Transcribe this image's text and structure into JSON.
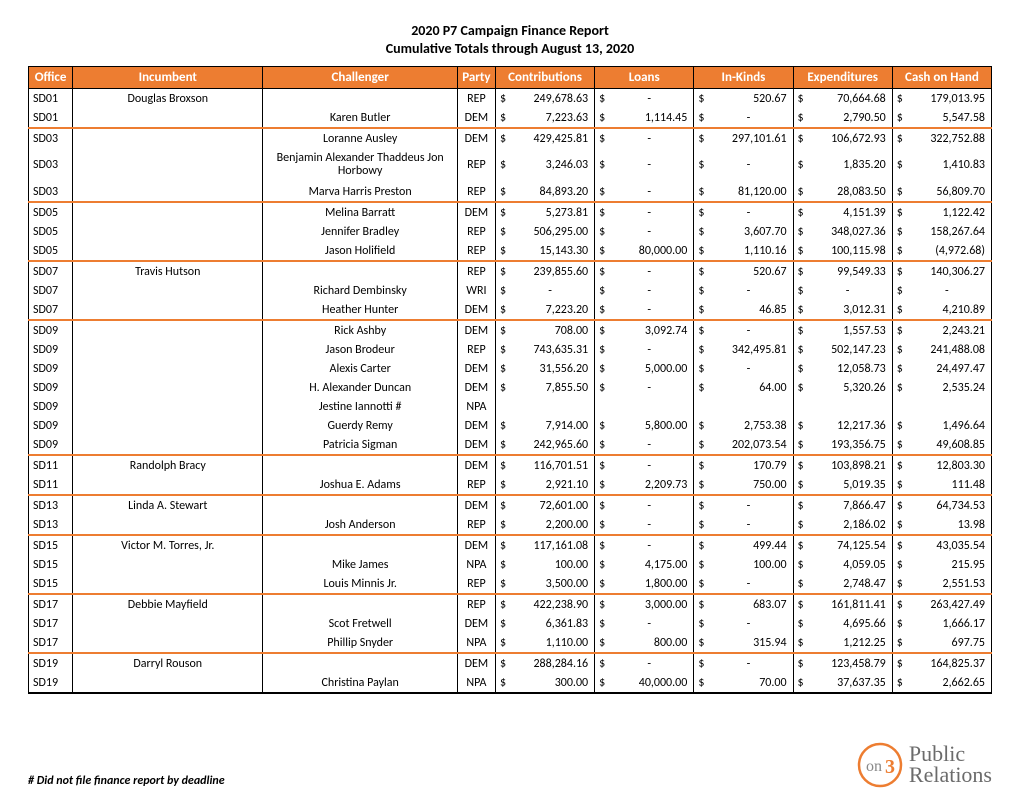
{
  "title_line1": "2020 P7 Campaign Finance Report",
  "title_line2": "Cumulative Totals through August 13, 2020",
  "footnote": "# Did not file finance report by deadline",
  "logo": {
    "on": "on",
    "three": "3",
    "name1": "Public",
    "name2": "Relations"
  },
  "headers": {
    "office": "Office",
    "incumbent": "Incumbent",
    "challenger": "Challenger",
    "party": "Party",
    "contributions": "Contributions",
    "loans": "Loans",
    "inkinds": "In-Kinds",
    "expenditures": "Expenditures",
    "cash": "Cash on Hand"
  },
  "colors": {
    "header_bg": "#ed7d31",
    "header_fg": "#ffffff",
    "group_border": "#ed7d31"
  },
  "rows": [
    {
      "office": "SD01",
      "incumbent": "Douglas Broxson",
      "challenger": "",
      "party": "REP",
      "contrib": "249,678.63",
      "loans": "-",
      "inkinds": "520.67",
      "expend": "70,664.68",
      "cash": "179,013.95",
      "end": false
    },
    {
      "office": "SD01",
      "incumbent": "",
      "challenger": "Karen Butler",
      "party": "DEM",
      "contrib": "7,223.63",
      "loans": "1,114.45",
      "inkinds": "-",
      "expend": "2,790.50",
      "cash": "5,547.58",
      "end": true
    },
    {
      "office": "SD03",
      "incumbent": "",
      "challenger": "Loranne Ausley",
      "party": "DEM",
      "contrib": "429,425.81",
      "loans": "-",
      "inkinds": "297,101.61",
      "expend": "106,672.93",
      "cash": "322,752.88",
      "end": false
    },
    {
      "office": "SD03",
      "incumbent": "",
      "challenger": "Benjamin Alexander Thaddeus Jon Horbowy",
      "party": "REP",
      "contrib": "3,246.03",
      "loans": "-",
      "inkinds": "-",
      "expend": "1,835.20",
      "cash": "1,410.83",
      "end": false,
      "tall": true
    },
    {
      "office": "SD03",
      "incumbent": "",
      "challenger": "Marva Harris Preston",
      "party": "REP",
      "contrib": "84,893.20",
      "loans": "-",
      "inkinds": "81,120.00",
      "expend": "28,083.50",
      "cash": "56,809.70",
      "end": true
    },
    {
      "office": "SD05",
      "incumbent": "",
      "challenger": "Melina Barratt",
      "party": "DEM",
      "contrib": "5,273.81",
      "loans": "-",
      "inkinds": "-",
      "expend": "4,151.39",
      "cash": "1,122.42",
      "end": false
    },
    {
      "office": "SD05",
      "incumbent": "",
      "challenger": "Jennifer Bradley",
      "party": "REP",
      "contrib": "506,295.00",
      "loans": "-",
      "inkinds": "3,607.70",
      "expend": "348,027.36",
      "cash": "158,267.64",
      "end": false
    },
    {
      "office": "SD05",
      "incumbent": "",
      "challenger": "Jason Holifield",
      "party": "REP",
      "contrib": "15,143.30",
      "loans": "80,000.00",
      "inkinds": "1,110.16",
      "expend": "100,115.98",
      "cash": "(4,972.68)",
      "end": true
    },
    {
      "office": "SD07",
      "incumbent": "Travis Hutson",
      "challenger": "",
      "party": "REP",
      "contrib": "239,855.60",
      "loans": "-",
      "inkinds": "520.67",
      "expend": "99,549.33",
      "cash": "140,306.27",
      "end": false
    },
    {
      "office": "SD07",
      "incumbent": "",
      "challenger": "Richard Dembinsky",
      "party": "WRI",
      "contrib": "-",
      "loans": "-",
      "inkinds": "-",
      "expend": "-",
      "cash": "-",
      "end": false
    },
    {
      "office": "SD07",
      "incumbent": "",
      "challenger": "Heather Hunter",
      "party": "DEM",
      "contrib": "7,223.20",
      "loans": "-",
      "inkinds": "46.85",
      "expend": "3,012.31",
      "cash": "4,210.89",
      "end": true
    },
    {
      "office": "SD09",
      "incumbent": "",
      "challenger": "Rick Ashby",
      "party": "DEM",
      "contrib": "708.00",
      "loans": "3,092.74",
      "inkinds": "-",
      "expend": "1,557.53",
      "cash": "2,243.21",
      "end": false
    },
    {
      "office": "SD09",
      "incumbent": "",
      "challenger": "Jason Brodeur",
      "party": "REP",
      "contrib": "743,635.31",
      "loans": "-",
      "inkinds": "342,495.81",
      "expend": "502,147.23",
      "cash": "241,488.08",
      "end": false
    },
    {
      "office": "SD09",
      "incumbent": "",
      "challenger": "Alexis Carter",
      "party": "DEM",
      "contrib": "31,556.20",
      "loans": "5,000.00",
      "inkinds": "-",
      "expend": "12,058.73",
      "cash": "24,497.47",
      "end": false
    },
    {
      "office": "SD09",
      "incumbent": "",
      "challenger": "H. Alexander Duncan",
      "party": "DEM",
      "contrib": "7,855.50",
      "loans": "-",
      "inkinds": "64.00",
      "expend": "5,320.26",
      "cash": "2,535.24",
      "end": false
    },
    {
      "office": "SD09",
      "incumbent": "",
      "challenger": "Jestine Iannotti #",
      "party": "NPA",
      "contrib": "",
      "loans": "",
      "inkinds": "",
      "expend": "",
      "cash": "",
      "end": false
    },
    {
      "office": "SD09",
      "incumbent": "",
      "challenger": "Guerdy Remy",
      "party": "DEM",
      "contrib": "7,914.00",
      "loans": "5,800.00",
      "inkinds": "2,753.38",
      "expend": "12,217.36",
      "cash": "1,496.64",
      "end": false
    },
    {
      "office": "SD09",
      "incumbent": "",
      "challenger": "Patricia Sigman",
      "party": "DEM",
      "contrib": "242,965.60",
      "loans": "-",
      "inkinds": "202,073.54",
      "expend": "193,356.75",
      "cash": "49,608.85",
      "end": true
    },
    {
      "office": "SD11",
      "incumbent": "Randolph Bracy",
      "challenger": "",
      "party": "DEM",
      "contrib": "116,701.51",
      "loans": "-",
      "inkinds": "170.79",
      "expend": "103,898.21",
      "cash": "12,803.30",
      "end": false
    },
    {
      "office": "SD11",
      "incumbent": "",
      "challenger": "Joshua E. Adams",
      "party": "REP",
      "contrib": "2,921.10",
      "loans": "2,209.73",
      "inkinds": "750.00",
      "expend": "5,019.35",
      "cash": "111.48",
      "end": true
    },
    {
      "office": "SD13",
      "incumbent": "Linda A. Stewart",
      "challenger": "",
      "party": "DEM",
      "contrib": "72,601.00",
      "loans": "-",
      "inkinds": "-",
      "expend": "7,866.47",
      "cash": "64,734.53",
      "end": false
    },
    {
      "office": "SD13",
      "incumbent": "",
      "challenger": "Josh Anderson",
      "party": "REP",
      "contrib": "2,200.00",
      "loans": "-",
      "inkinds": "-",
      "expend": "2,186.02",
      "cash": "13.98",
      "end": true
    },
    {
      "office": "SD15",
      "incumbent": "Victor M. Torres, Jr.",
      "challenger": "",
      "party": "DEM",
      "contrib": "117,161.08",
      "loans": "-",
      "inkinds": "499.44",
      "expend": "74,125.54",
      "cash": "43,035.54",
      "end": false
    },
    {
      "office": "SD15",
      "incumbent": "",
      "challenger": "Mike James",
      "party": "NPA",
      "contrib": "100.00",
      "loans": "4,175.00",
      "inkinds": "100.00",
      "expend": "4,059.05",
      "cash": "215.95",
      "end": false
    },
    {
      "office": "SD15",
      "incumbent": "",
      "challenger": "Louis Minnis Jr.",
      "party": "REP",
      "contrib": "3,500.00",
      "loans": "1,800.00",
      "inkinds": "-",
      "expend": "2,748.47",
      "cash": "2,551.53",
      "end": true
    },
    {
      "office": "SD17",
      "incumbent": "Debbie Mayfield",
      "challenger": "",
      "party": "REP",
      "contrib": "422,238.90",
      "loans": "3,000.00",
      "inkinds": "683.07",
      "expend": "161,811.41",
      "cash": "263,427.49",
      "end": false
    },
    {
      "office": "SD17",
      "incumbent": "",
      "challenger": "Scot Fretwell",
      "party": "DEM",
      "contrib": "6,361.83",
      "loans": "-",
      "inkinds": "-",
      "expend": "4,695.66",
      "cash": "1,666.17",
      "end": false
    },
    {
      "office": "SD17",
      "incumbent": "",
      "challenger": "Phillip Snyder",
      "party": "NPA",
      "contrib": "1,110.00",
      "loans": "800.00",
      "inkinds": "315.94",
      "expend": "1,212.25",
      "cash": "697.75",
      "end": true
    },
    {
      "office": "SD19",
      "incumbent": "Darryl Rouson",
      "challenger": "",
      "party": "DEM",
      "contrib": "288,284.16",
      "loans": "-",
      "inkinds": "-",
      "expend": "123,458.79",
      "cash": "164,825.37",
      "end": false
    },
    {
      "office": "SD19",
      "incumbent": "",
      "challenger": "Christina Paylan",
      "party": "NPA",
      "contrib": "300.00",
      "loans": "40,000.00",
      "inkinds": "70.00",
      "expend": "37,637.35",
      "cash": "2,662.65",
      "end": false,
      "last": true
    }
  ]
}
